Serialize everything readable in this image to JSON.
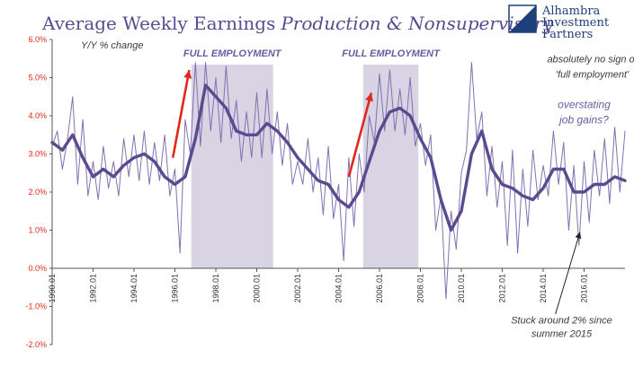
{
  "chart_data": {
    "type": "line",
    "title_main": "Average Weekly Earnings",
    "title_italic": "Production & Nonsupervisory",
    "ylabel": "Y/Y % change",
    "ylim": [
      -2.0,
      6.0
    ],
    "yticks": [
      6.0,
      5.0,
      4.0,
      3.0,
      2.0,
      1.0,
      0.0,
      -1.0,
      -2.0
    ],
    "ytick_labels": [
      "6.0%",
      "5.0%",
      "4.0%",
      "3.0%",
      "2.0%",
      "1.0%",
      "0.0%",
      "-1.0%",
      "-2.0%"
    ],
    "xlim": [
      1990.0,
      2018.0
    ],
    "xticks": [
      1990,
      1992,
      1994,
      1996,
      1998,
      2000,
      2002,
      2004,
      2006,
      2008,
      2010,
      2012,
      2014,
      2016
    ],
    "xtick_labels": [
      "1990.01",
      "1992.01",
      "1994.01",
      "1996.01",
      "1998.01",
      "2000.01",
      "2002.01",
      "2004.01",
      "2006.01",
      "2008.01",
      "2010.01",
      "2012.01",
      "2014.01",
      "2016.01"
    ],
    "bands": [
      {
        "label": "FULL EMPLOYMENT",
        "x0": 1996.8,
        "x1": 2000.8
      },
      {
        "label": "FULL EMPLOYMENT",
        "x0": 2005.2,
        "x1": 2007.9
      }
    ],
    "arrows": [
      {
        "from": [
          1995.9,
          2.9
        ],
        "to": [
          1996.7,
          5.2
        ]
      },
      {
        "from": [
          2004.5,
          2.4
        ],
        "to": [
          2005.6,
          4.6
        ]
      }
    ],
    "annotations": [
      {
        "text": "absolutely no sign of",
        "x": 2016.4,
        "y": 5.4,
        "style": "dark"
      },
      {
        "text": "'full employment'",
        "x": 2016.4,
        "y": 5.0,
        "style": "dark"
      },
      {
        "text": "overstating",
        "x": 2016.0,
        "y": 4.2,
        "style": "purple"
      },
      {
        "text": "job gains?",
        "x": 2016.0,
        "y": 3.8,
        "style": "purple"
      },
      {
        "text": "Stuck around 2% since",
        "x": 2014.9,
        "y": -1.45,
        "style": "dark"
      },
      {
        "text": "summer 2015",
        "x": 2014.9,
        "y": -1.8,
        "style": "dark"
      }
    ],
    "pointer": {
      "from": [
        2014.6,
        -1.2
      ],
      "to": [
        2015.8,
        0.95
      ]
    },
    "series": [
      {
        "role": "monthly",
        "color": "#7f72b0",
        "points": [
          [
            1990.0,
            3.2
          ],
          [
            1990.25,
            3.6
          ],
          [
            1990.5,
            2.6
          ],
          [
            1990.75,
            3.4
          ],
          [
            1991.0,
            4.5
          ],
          [
            1991.25,
            2.2
          ],
          [
            1991.5,
            3.9
          ],
          [
            1991.75,
            1.9
          ],
          [
            1992.0,
            2.8
          ],
          [
            1992.25,
            1.8
          ],
          [
            1992.5,
            3.2
          ],
          [
            1992.75,
            2.1
          ],
          [
            1993.0,
            2.8
          ],
          [
            1993.25,
            1.9
          ],
          [
            1993.5,
            3.4
          ],
          [
            1993.75,
            2.4
          ],
          [
            1994.0,
            3.5
          ],
          [
            1994.25,
            2.3
          ],
          [
            1994.5,
            3.6
          ],
          [
            1994.75,
            2.2
          ],
          [
            1995.0,
            3.3
          ],
          [
            1995.25,
            2.3
          ],
          [
            1995.5,
            3.5
          ],
          [
            1995.75,
            1.9
          ],
          [
            1996.0,
            2.6
          ],
          [
            1996.25,
            0.4
          ],
          [
            1996.5,
            3.9
          ],
          [
            1996.75,
            3.0
          ],
          [
            1997.0,
            5.4
          ],
          [
            1997.25,
            3.2
          ],
          [
            1997.5,
            5.4
          ],
          [
            1997.75,
            3.6
          ],
          [
            1998.0,
            5.0
          ],
          [
            1998.25,
            3.3
          ],
          [
            1998.5,
            5.3
          ],
          [
            1998.75,
            3.4
          ],
          [
            1999.0,
            4.4
          ],
          [
            1999.25,
            2.8
          ],
          [
            1999.5,
            4.1
          ],
          [
            1999.75,
            2.9
          ],
          [
            2000.0,
            4.6
          ],
          [
            2000.25,
            2.9
          ],
          [
            2000.5,
            4.7
          ],
          [
            2000.75,
            3.0
          ],
          [
            2001.0,
            4.1
          ],
          [
            2001.25,
            2.7
          ],
          [
            2001.5,
            3.8
          ],
          [
            2001.75,
            2.2
          ],
          [
            2002.0,
            2.8
          ],
          [
            2002.25,
            2.2
          ],
          [
            2002.5,
            3.4
          ],
          [
            2002.75,
            2.0
          ],
          [
            2003.0,
            2.9
          ],
          [
            2003.25,
            1.4
          ],
          [
            2003.5,
            3.2
          ],
          [
            2003.75,
            1.3
          ],
          [
            2004.0,
            2.2
          ],
          [
            2004.25,
            0.2
          ],
          [
            2004.5,
            2.9
          ],
          [
            2004.75,
            1.1
          ],
          [
            2005.0,
            3.0
          ],
          [
            2005.25,
            2.0
          ],
          [
            2005.5,
            4.0
          ],
          [
            2005.75,
            3.3
          ],
          [
            2006.0,
            5.1
          ],
          [
            2006.25,
            3.6
          ],
          [
            2006.5,
            5.2
          ],
          [
            2006.75,
            3.6
          ],
          [
            2007.0,
            4.7
          ],
          [
            2007.25,
            3.5
          ],
          [
            2007.5,
            5.0
          ],
          [
            2007.75,
            3.2
          ],
          [
            2008.0,
            3.8
          ],
          [
            2008.25,
            2.7
          ],
          [
            2008.5,
            3.5
          ],
          [
            2008.75,
            1.0
          ],
          [
            2009.0,
            1.9
          ],
          [
            2009.25,
            -0.8
          ],
          [
            2009.5,
            1.5
          ],
          [
            2009.75,
            0.5
          ],
          [
            2010.0,
            2.5
          ],
          [
            2010.25,
            3.1
          ],
          [
            2010.5,
            5.4
          ],
          [
            2010.75,
            3.4
          ],
          [
            2011.0,
            4.1
          ],
          [
            2011.25,
            1.9
          ],
          [
            2011.5,
            3.2
          ],
          [
            2011.75,
            1.6
          ],
          [
            2012.0,
            2.8
          ],
          [
            2012.25,
            0.6
          ],
          [
            2012.5,
            3.1
          ],
          [
            2012.75,
            0.4
          ],
          [
            2013.0,
            2.6
          ],
          [
            2013.25,
            1.1
          ],
          [
            2013.5,
            3.1
          ],
          [
            2013.75,
            1.8
          ],
          [
            2014.0,
            2.7
          ],
          [
            2014.25,
            1.9
          ],
          [
            2014.5,
            3.6
          ],
          [
            2014.75,
            2.2
          ],
          [
            2015.0,
            3.3
          ],
          [
            2015.25,
            1.0
          ],
          [
            2015.5,
            2.7
          ],
          [
            2015.75,
            0.6
          ],
          [
            2016.0,
            2.8
          ],
          [
            2016.25,
            1.2
          ],
          [
            2016.5,
            3.1
          ],
          [
            2016.75,
            1.9
          ],
          [
            2017.0,
            3.4
          ],
          [
            2017.25,
            1.7
          ],
          [
            2017.5,
            3.7
          ],
          [
            2017.75,
            2.0
          ],
          [
            2018.0,
            3.6
          ]
        ]
      },
      {
        "role": "smoothed",
        "color": "#5b4a8f",
        "points": [
          [
            1990.0,
            3.3
          ],
          [
            1990.5,
            3.1
          ],
          [
            1991.0,
            3.5
          ],
          [
            1991.5,
            2.9
          ],
          [
            1992.0,
            2.4
          ],
          [
            1992.5,
            2.6
          ],
          [
            1993.0,
            2.4
          ],
          [
            1993.5,
            2.7
          ],
          [
            1994.0,
            2.9
          ],
          [
            1994.5,
            3.0
          ],
          [
            1995.0,
            2.8
          ],
          [
            1995.5,
            2.4
          ],
          [
            1996.0,
            2.2
          ],
          [
            1996.5,
            2.4
          ],
          [
            1997.0,
            3.4
          ],
          [
            1997.5,
            4.8
          ],
          [
            1998.0,
            4.5
          ],
          [
            1998.5,
            4.2
          ],
          [
            1999.0,
            3.6
          ],
          [
            1999.5,
            3.5
          ],
          [
            2000.0,
            3.5
          ],
          [
            2000.5,
            3.8
          ],
          [
            2001.0,
            3.6
          ],
          [
            2001.5,
            3.3
          ],
          [
            2002.0,
            2.9
          ],
          [
            2002.5,
            2.6
          ],
          [
            2003.0,
            2.3
          ],
          [
            2003.5,
            2.2
          ],
          [
            2004.0,
            1.8
          ],
          [
            2004.5,
            1.6
          ],
          [
            2005.0,
            2.0
          ],
          [
            2005.5,
            2.8
          ],
          [
            2006.0,
            3.6
          ],
          [
            2006.5,
            4.1
          ],
          [
            2007.0,
            4.2
          ],
          [
            2007.5,
            4.0
          ],
          [
            2008.0,
            3.4
          ],
          [
            2008.5,
            2.9
          ],
          [
            2009.0,
            1.8
          ],
          [
            2009.5,
            1.0
          ],
          [
            2010.0,
            1.5
          ],
          [
            2010.5,
            3.0
          ],
          [
            2011.0,
            3.6
          ],
          [
            2011.5,
            2.6
          ],
          [
            2012.0,
            2.2
          ],
          [
            2012.5,
            2.1
          ],
          [
            2013.0,
            1.9
          ],
          [
            2013.5,
            1.8
          ],
          [
            2014.0,
            2.1
          ],
          [
            2014.5,
            2.6
          ],
          [
            2015.0,
            2.6
          ],
          [
            2015.5,
            2.0
          ],
          [
            2016.0,
            2.0
          ],
          [
            2016.5,
            2.2
          ],
          [
            2017.0,
            2.2
          ],
          [
            2017.5,
            2.4
          ],
          [
            2018.0,
            2.3
          ]
        ]
      }
    ]
  },
  "logo": {
    "line1": "Alhambra",
    "line2": "Investment",
    "line3": "Partners",
    "color": "#1f3f7a"
  }
}
